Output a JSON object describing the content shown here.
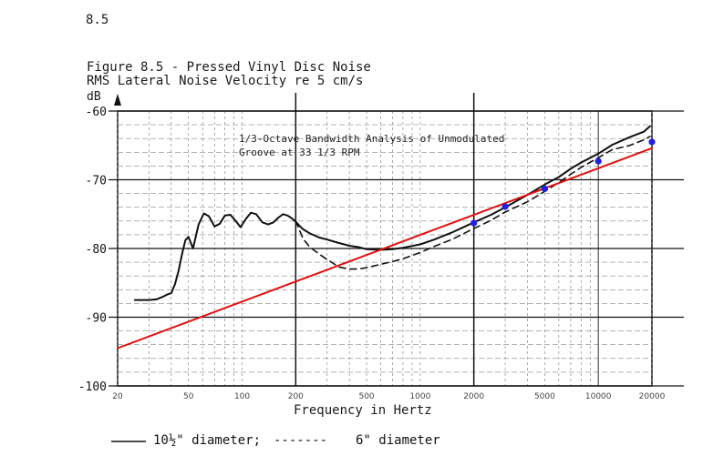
{
  "page": {
    "number": "8.5"
  },
  "figure": {
    "title": "Figure 8.5 - Pressed Vinyl Disc Noise",
    "subtitle": "RMS Lateral Noise Velocity re 5 cm/s",
    "annotation_line1": "1/3-Octave Bandwidth Analysis of Unmodulated",
    "annotation_line2": "Groove at 33 1/3 RPM"
  },
  "legend": {
    "solid_label": "10½\" diameter;",
    "dashed_marker": "-------",
    "dashed_label": "6\" diameter"
  },
  "chart_data": {
    "type": "line",
    "title": "Figure 8.5 - Pressed Vinyl Disc Noise",
    "ylabel": "dB",
    "xlabel": "Frequency in Hertz",
    "x_scale": "log",
    "xlim": [
      20,
      20000
    ],
    "ylim": [
      -100,
      -60
    ],
    "grid": true,
    "legend_position": "bottom",
    "yticks": [
      -60,
      -70,
      -80,
      -90,
      -100
    ],
    "ytick_labels": [
      "-60",
      "-70",
      "-80",
      "-90",
      "-100"
    ],
    "xticks": [
      20,
      50,
      100,
      200,
      500,
      1000,
      2000,
      5000,
      10000,
      20000
    ],
    "xtick_labels": [
      "20",
      "50",
      "100",
      "200",
      "500",
      "1000",
      "2000",
      "5000",
      "10000",
      "20000"
    ],
    "colors": {
      "solid": "#111111",
      "dashed": "#111111",
      "fit_line": "#e01010",
      "points": "#2020e0"
    },
    "series": [
      {
        "name": "10½\" diameter",
        "style": "solid",
        "x": [
          25,
          30,
          33,
          36,
          38,
          40,
          42,
          44,
          46,
          48,
          50,
          53,
          57,
          61,
          65,
          70,
          75,
          80,
          86,
          92,
          98,
          105,
          112,
          120,
          130,
          140,
          150,
          160,
          170,
          180,
          190,
          200,
          210,
          220,
          240,
          270,
          300,
          350,
          400,
          450,
          500,
          600,
          700,
          800,
          1000,
          1200,
          1500,
          2000,
          2500,
          3000,
          4000,
          5000,
          6000,
          7000,
          8000,
          10000,
          12000,
          15000,
          18000,
          19500
        ],
        "y": [
          -87.5,
          -87.5,
          -87.4,
          -87.0,
          -86.7,
          -86.5,
          -85.2,
          -83.2,
          -80.8,
          -78.8,
          -78.3,
          -80.0,
          -76.5,
          -74.9,
          -75.3,
          -76.8,
          -76.4,
          -75.2,
          -75.1,
          -76.0,
          -76.9,
          -75.7,
          -74.8,
          -75.0,
          -76.2,
          -76.5,
          -76.2,
          -75.5,
          -75.0,
          -75.2,
          -75.6,
          -76.1,
          -76.7,
          -77.2,
          -77.8,
          -78.4,
          -78.7,
          -79.2,
          -79.6,
          -79.8,
          -80.1,
          -80.2,
          -80.1,
          -79.9,
          -79.4,
          -78.7,
          -77.7,
          -76.2,
          -75.1,
          -74.0,
          -72.2,
          -70.7,
          -69.6,
          -68.4,
          -67.5,
          -66.2,
          -64.9,
          -63.8,
          -63.0,
          -62.2
        ]
      },
      {
        "name": "6\" diameter",
        "style": "dashed",
        "x": [
          200,
          220,
          240,
          270,
          300,
          350,
          400,
          450,
          500,
          600,
          700,
          800,
          1000,
          1200,
          1500,
          2000,
          2500,
          3000,
          4000,
          5000,
          6000,
          7000,
          8000,
          10000,
          12000,
          15000,
          18000,
          19500
        ],
        "y": [
          -76.0,
          -78.6,
          -79.8,
          -80.8,
          -81.6,
          -82.7,
          -83.0,
          -83.0,
          -82.8,
          -82.3,
          -81.9,
          -81.5,
          -80.6,
          -79.7,
          -78.7,
          -77.1,
          -75.9,
          -74.7,
          -73.2,
          -71.7,
          -70.4,
          -69.2,
          -68.2,
          -66.8,
          -65.6,
          -65.0,
          -64.2,
          -63.7
        ]
      },
      {
        "name": "",
        "style": "fit-line",
        "x": [
          20,
          20000
        ],
        "y": [
          -94.5,
          -65.4
        ]
      },
      {
        "name": "",
        "style": "points",
        "x": [
          2000,
          3000,
          5000,
          10000,
          20000
        ],
        "y": [
          -76.3,
          -73.9,
          -71.3,
          -67.3,
          -64.5
        ]
      }
    ]
  }
}
